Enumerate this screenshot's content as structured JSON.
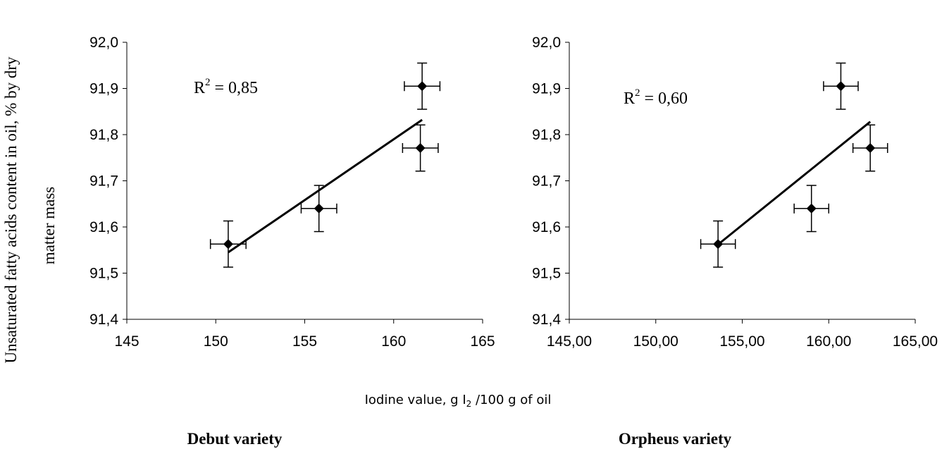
{
  "figure": {
    "y_axis_label_line1": "Unsaturated fatty acids content in oil, %  by dry",
    "y_axis_label_line2": "matter mass",
    "x_axis_label": "Iodine value, g I₂ /100 g of oil",
    "x_axis_label_prefix": "Iodine value, g I",
    "x_axis_label_sub": "2",
    "x_axis_label_suffix": " /100 g of oil"
  },
  "chart_data": [
    {
      "type": "scatter",
      "title": "Debut variety",
      "xlim": [
        145,
        165
      ],
      "ylim": [
        91.4,
        92.0
      ],
      "x_ticks": [
        "145",
        "150",
        "155",
        "160",
        "165"
      ],
      "y_ticks": [
        "91,4",
        "91,5",
        "91,6",
        "91,7",
        "91,8",
        "91,9",
        "92,0"
      ],
      "points": [
        {
          "x": 150.7,
          "y": 91.563,
          "x_err": 1.0,
          "y_err": 0.05
        },
        {
          "x": 155.8,
          "y": 91.64,
          "x_err": 1.0,
          "y_err": 0.05
        },
        {
          "x": 161.5,
          "y": 91.771,
          "x_err": 1.0,
          "y_err": 0.05
        },
        {
          "x": 161.6,
          "y": 91.905,
          "x_err": 1.0,
          "y_err": 0.05
        }
      ],
      "trendline": {
        "x": [
          150.7,
          161.6
        ],
        "y": [
          91.545,
          91.832
        ]
      },
      "r2_prefix": "R",
      "r2_sup": "2",
      "r2_suffix": " = 0,85"
    },
    {
      "type": "scatter",
      "title": "Orpheus variety",
      "xlim": [
        145,
        165
      ],
      "ylim": [
        91.4,
        92.0
      ],
      "x_ticks": [
        "145,00",
        "150,00",
        "155,00",
        "160,00",
        "165,00"
      ],
      "y_ticks": [
        "91,4",
        "91,5",
        "91,6",
        "91,7",
        "91,8",
        "91,9",
        "92,0"
      ],
      "points": [
        {
          "x": 153.6,
          "y": 91.563,
          "x_err": 1.0,
          "y_err": 0.05
        },
        {
          "x": 159.0,
          "y": 91.64,
          "x_err": 1.0,
          "y_err": 0.05
        },
        {
          "x": 162.4,
          "y": 91.771,
          "x_err": 1.0,
          "y_err": 0.05
        },
        {
          "x": 160.7,
          "y": 91.905,
          "x_err": 1.0,
          "y_err": 0.05
        }
      ],
      "trendline": {
        "x": [
          153.6,
          162.4
        ],
        "y": [
          91.562,
          91.828
        ]
      },
      "r2_prefix": "R",
      "r2_sup": "2",
      "r2_suffix": " = 0,60"
    }
  ]
}
